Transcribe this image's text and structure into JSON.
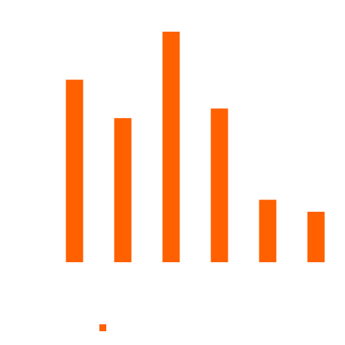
{
  "chart_data": {
    "type": "bar",
    "categories": [
      "",
      "",
      "",
      "",
      "",
      ""
    ],
    "values": [
      76,
      60,
      96,
      64,
      26,
      21
    ],
    "ylim": [
      0,
      100
    ],
    "title": "",
    "xlabel": "",
    "ylabel": "",
    "grid": false,
    "legend_position": "bottom",
    "series": [
      {
        "name": "",
        "color": "#ff6000"
      }
    ]
  },
  "colors": {
    "bar": "#ff6000",
    "background": "#ffffff"
  }
}
